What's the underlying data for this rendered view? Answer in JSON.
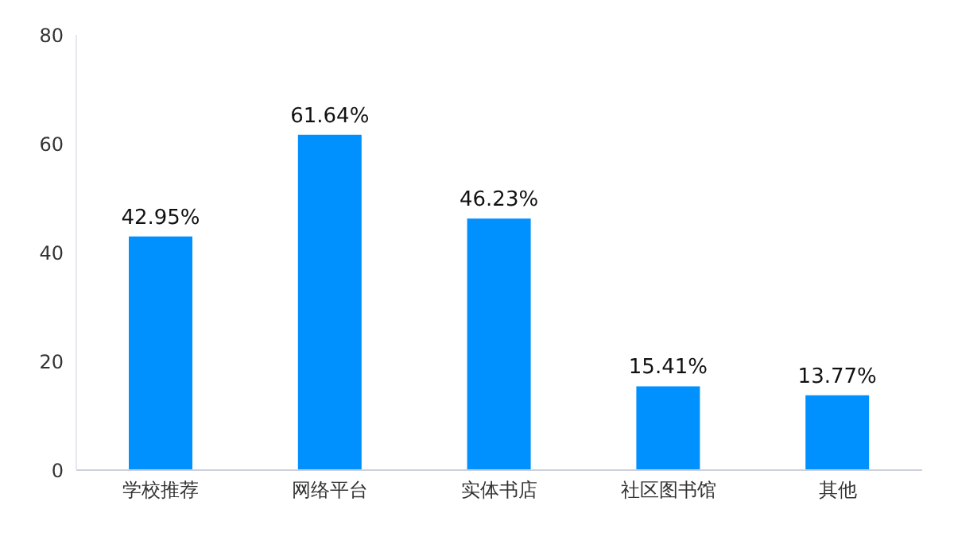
{
  "chart_data": {
    "type": "bar",
    "categories": [
      "学校推荐",
      "网络平台",
      "实体书店",
      "社区图书馆",
      "其他"
    ],
    "values": [
      42.95,
      61.64,
      46.23,
      15.41,
      13.77
    ],
    "value_labels": [
      "42.95%",
      "61.64%",
      "46.23%",
      "15.41%",
      "13.77%"
    ],
    "color": "#0091ff",
    "ylim": [
      0,
      80
    ],
    "yticks": [
      0,
      20,
      40,
      60,
      80
    ],
    "grid": false
  }
}
